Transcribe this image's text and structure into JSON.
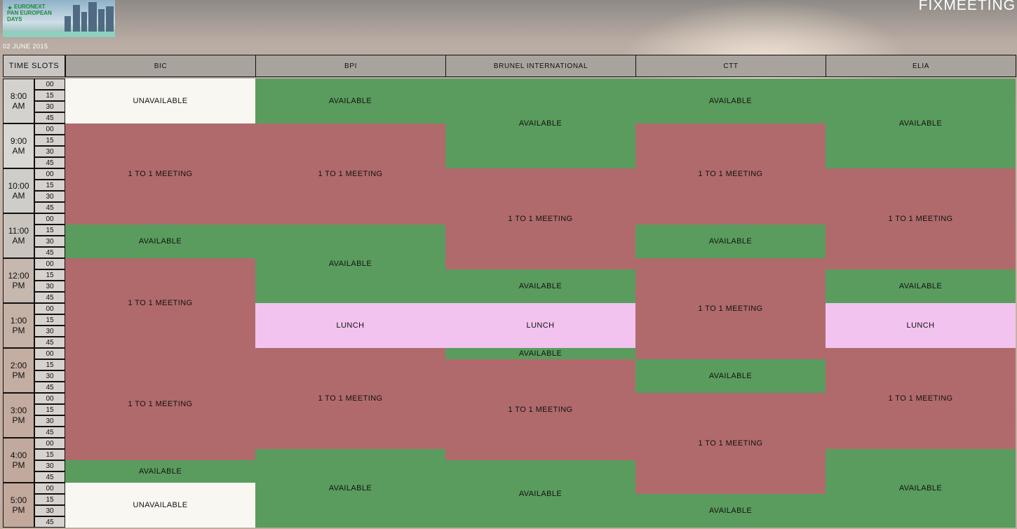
{
  "logo": {
    "lines": [
      "EURONEXT",
      "PAN EUROPEAN",
      "DAYS"
    ],
    "accent": "#1e8a3a"
  },
  "brand": "FIXMEETING",
  "date": "02 JUNE 2015",
  "time_slots_label": "TIME SLOTS",
  "companies": [
    "BIC",
    "BPI",
    "BRUNEL INTERNATIONAL",
    "CTT",
    "ELIA"
  ],
  "hours": [
    {
      "time": "8:00",
      "period": "AM"
    },
    {
      "time": "9:00",
      "period": "AM"
    },
    {
      "time": "10:00",
      "period": "AM"
    },
    {
      "time": "11:00",
      "period": "AM"
    },
    {
      "time": "12:00",
      "period": "PM"
    },
    {
      "time": "1:00",
      "period": "PM"
    },
    {
      "time": "2:00",
      "period": "PM"
    },
    {
      "time": "3:00",
      "period": "PM"
    },
    {
      "time": "4:00",
      "period": "PM"
    },
    {
      "time": "5:00",
      "period": "PM"
    }
  ],
  "minutes": [
    "00",
    "15",
    "30",
    "45"
  ],
  "status_colors": {
    "available": "#5a9c5d",
    "meeting": "#b06a6c",
    "lunch": "#f2c3ee",
    "unavailable": "#f9f7f1"
  },
  "schedule": [
    [
      {
        "label": "UNAVAILABLE",
        "type": "unavailable",
        "slots": 4
      },
      {
        "label": "1 TO 1 MEETING",
        "type": "meeting",
        "slots": 9
      },
      {
        "label": "AVAILABLE",
        "type": "available",
        "slots": 3
      },
      {
        "label": "1 TO 1 MEETING",
        "type": "meeting",
        "slots": 8
      },
      {
        "label": "1 TO 1 MEETING",
        "type": "meeting",
        "slots": 10
      },
      {
        "label": "AVAILABLE",
        "type": "available",
        "slots": 2
      },
      {
        "label": "UNAVAILABLE",
        "type": "unavailable",
        "slots": 4
      }
    ],
    [
      {
        "label": "AVAILABLE",
        "type": "available",
        "slots": 4
      },
      {
        "label": "1 TO 1 MEETING",
        "type": "meeting",
        "slots": 9
      },
      {
        "label": "AVAILABLE",
        "type": "available",
        "slots": 7
      },
      {
        "label": "LUNCH",
        "type": "lunch",
        "slots": 4
      },
      {
        "label": "1 TO 1 MEETING",
        "type": "meeting",
        "slots": 9
      },
      {
        "label": "AVAILABLE",
        "type": "available",
        "slots": 7
      }
    ],
    [
      {
        "label": "AVAILABLE",
        "type": "available",
        "slots": 8
      },
      {
        "label": "1 TO 1 MEETING",
        "type": "meeting",
        "slots": 9
      },
      {
        "label": "AVAILABLE",
        "type": "available",
        "slots": 3
      },
      {
        "label": "LUNCH",
        "type": "lunch",
        "slots": 4
      },
      {
        "label": "AVAILABLE",
        "type": "available",
        "slots": 1
      },
      {
        "label": "1 TO 1 MEETING",
        "type": "meeting",
        "slots": 9
      },
      {
        "label": "AVAILABLE",
        "type": "available",
        "slots": 6
      }
    ],
    [
      {
        "label": "AVAILABLE",
        "type": "available",
        "slots": 4
      },
      {
        "label": "1 TO 1 MEETING",
        "type": "meeting",
        "slots": 9
      },
      {
        "label": "AVAILABLE",
        "type": "available",
        "slots": 3
      },
      {
        "label": "1 TO 1 MEETING",
        "type": "meeting",
        "slots": 9
      },
      {
        "label": "AVAILABLE",
        "type": "available",
        "slots": 3
      },
      {
        "label": "1 TO 1 MEETING",
        "type": "meeting",
        "slots": 9
      },
      {
        "label": "AVAILABLE",
        "type": "available",
        "slots": 3
      }
    ],
    [
      {
        "label": "AVAILABLE",
        "type": "available",
        "slots": 8
      },
      {
        "label": "1 TO 1 MEETING",
        "type": "meeting",
        "slots": 9
      },
      {
        "label": "AVAILABLE",
        "type": "available",
        "slots": 3
      },
      {
        "label": "LUNCH",
        "type": "lunch",
        "slots": 4
      },
      {
        "label": "1 TO 1 MEETING",
        "type": "meeting",
        "slots": 9
      },
      {
        "label": "AVAILABLE",
        "type": "available",
        "slots": 7
      }
    ]
  ]
}
